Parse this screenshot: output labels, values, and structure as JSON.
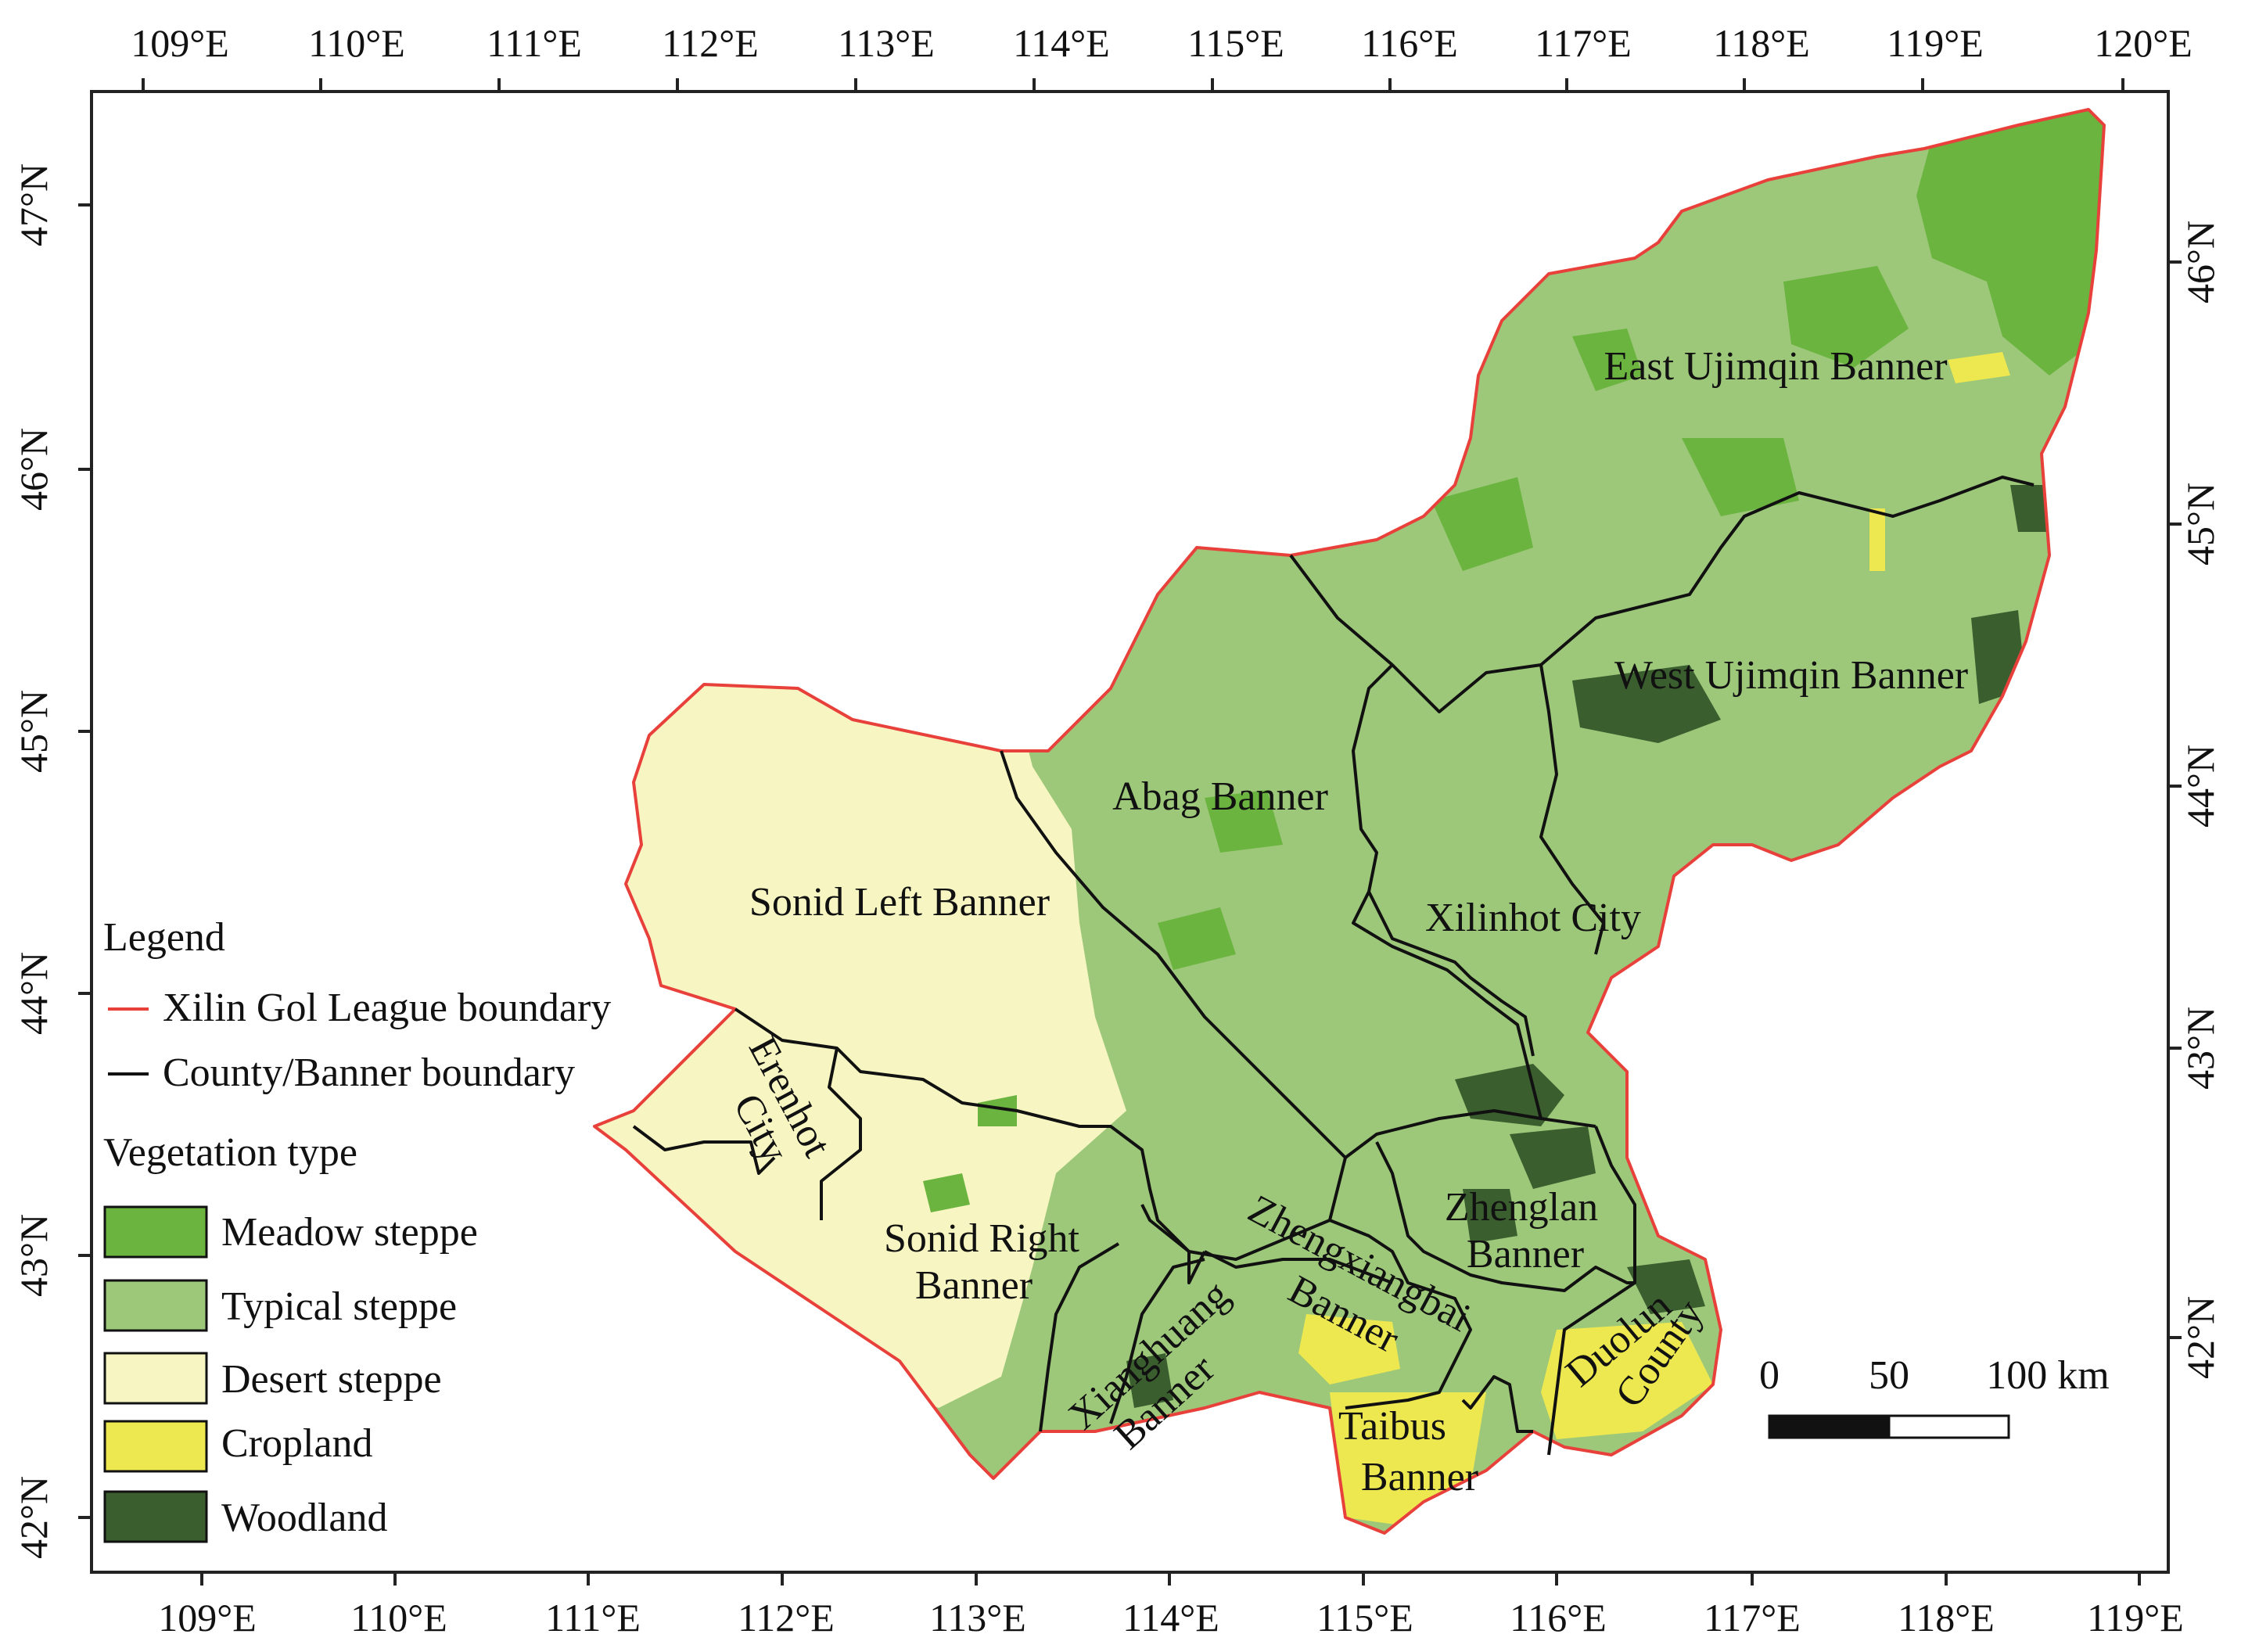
{
  "colors": {
    "meadow": "#6ab43f",
    "typical": "#9dc87a",
    "desert": "#f7f6c2",
    "cropland": "#ede84f",
    "woodland": "#3b5e2f",
    "league_boundary": "#e8403a",
    "county_boundary": "#111111"
  },
  "axes": {
    "top": [
      "109°E",
      "110°E",
      "111°E",
      "112°E",
      "113°E",
      "114°E",
      "115°E",
      "116°E",
      "117°E",
      "118°E",
      "119°E",
      "120°E"
    ],
    "bottom": [
      "109°E",
      "110°E",
      "111°E",
      "112°E",
      "113°E",
      "114°E",
      "115°E",
      "116°E",
      "117°E",
      "118°E",
      "119°E"
    ],
    "left": [
      "47°N",
      "46°N",
      "45°N",
      "44°N",
      "43°N",
      "42°N"
    ],
    "right": [
      "46°N",
      "45°N",
      "44°N",
      "43°N",
      "42°N"
    ]
  },
  "regions": {
    "east_ujimqin": "East Ujimqin Banner",
    "west_ujimqin": "West Ujimqin Banner",
    "abag": "Abag Banner",
    "sonid_left": "Sonid Left Banner",
    "xilinhot": "Xilinhot City",
    "erenhot_1": "Erenhot",
    "erenhot_2": "City",
    "sonid_right_1": "Sonid Right",
    "sonid_right_2": "Banner",
    "zhenglan_1": "Zhenglan",
    "zhenglan_2": "Banner",
    "zhengxiangbai_1": "Zhengxiangbai",
    "zhengxiangbai_2": "Banner",
    "xianghuang_1": "Xianghuang",
    "xianghuang_2": "Banner",
    "taibus_1": "Taibus",
    "taibus_2": "Banner",
    "duolun_1": "Duolun",
    "duolun_2": "County"
  },
  "legend": {
    "title": "Legend",
    "league_boundary": "Xilin Gol League boundary",
    "county_boundary": "County/Banner boundary",
    "veg_title": "Vegetation type",
    "items": [
      "Meadow steppe",
      "Typical steppe",
      "Desert steppe",
      "Cropland",
      "Woodland"
    ]
  },
  "scalebar": {
    "labels": [
      "0",
      "50",
      "100 km"
    ]
  }
}
